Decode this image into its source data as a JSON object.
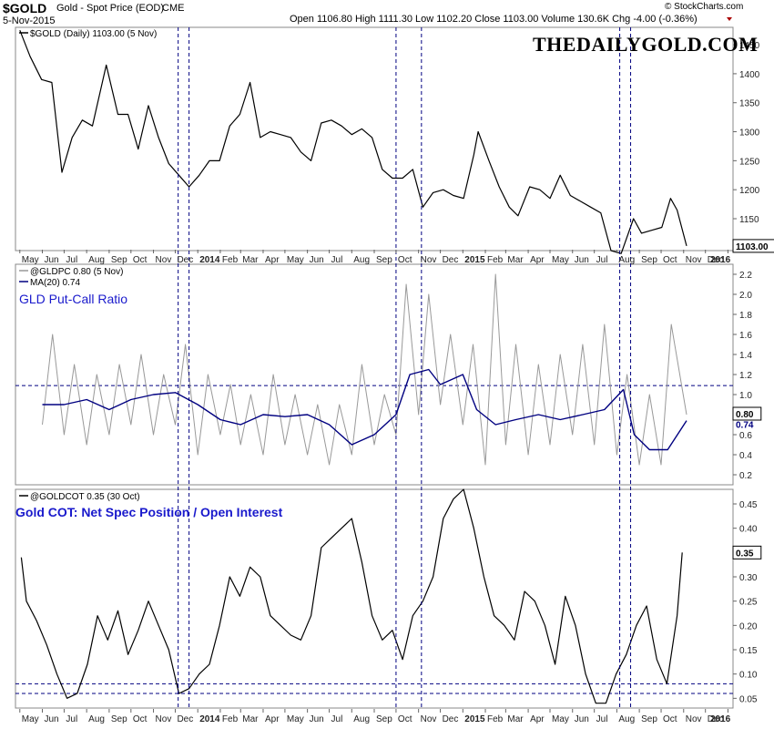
{
  "header": {
    "symbol": "$GOLD",
    "description": "Gold - Spot Price (EOD)",
    "exchange": "CME",
    "date": "5-Nov-2015",
    "ohlc": "Open 1106.80  High 1111.30  Low 1102.20  Close 1103.00  Volume 130.6K  Chg -4.00 (-0.36%)",
    "copyright": "© StockCharts.com",
    "brand": "THEDAILYGOLD.COM"
  },
  "colors": {
    "price_line": "#000000",
    "pcr_raw": "#999999",
    "ma_line": "#000080",
    "annotation": "#1a1acc",
    "guide": "#000080"
  },
  "chart_data": [
    {
      "type": "line",
      "panel": "price",
      "legend": "$GOLD (Daily) 1103.00 (5 Nov)",
      "last_value_label": "1103.00",
      "ylim": [
        1095,
        1480
      ],
      "y_ticks": [
        1150,
        1200,
        1250,
        1300,
        1350,
        1400,
        1450
      ],
      "series": [
        {
          "name": "$GOLD",
          "x": [
            "2013-05-01",
            "2013-05-15",
            "2013-05-31",
            "2013-06-14",
            "2013-06-28",
            "2013-07-12",
            "2013-07-26",
            "2013-08-09",
            "2013-08-28",
            "2013-09-13",
            "2013-09-27",
            "2013-10-11",
            "2013-10-25",
            "2013-11-08",
            "2013-11-22",
            "2013-12-06",
            "2013-12-20",
            "2014-01-03",
            "2014-01-17",
            "2014-01-31",
            "2014-02-14",
            "2014-02-28",
            "2014-03-14",
            "2014-03-28",
            "2014-04-11",
            "2014-04-25",
            "2014-05-09",
            "2014-05-23",
            "2014-06-06",
            "2014-06-20",
            "2014-07-04",
            "2014-07-18",
            "2014-08-01",
            "2014-08-15",
            "2014-08-29",
            "2014-09-12",
            "2014-09-26",
            "2014-10-10",
            "2014-10-24",
            "2014-11-07",
            "2014-11-21",
            "2014-12-05",
            "2014-12-19",
            "2015-01-02",
            "2015-01-16",
            "2015-01-22",
            "2015-02-06",
            "2015-02-20",
            "2015-03-06",
            "2015-03-18",
            "2015-04-03",
            "2015-04-17",
            "2015-05-01",
            "2015-05-15",
            "2015-05-29",
            "2015-06-12",
            "2015-06-26",
            "2015-07-10",
            "2015-07-24",
            "2015-08-07",
            "2015-08-24",
            "2015-09-04",
            "2015-09-18",
            "2015-10-02",
            "2015-10-14",
            "2015-10-23",
            "2015-11-05"
          ],
          "values": [
            1475,
            1430,
            1390,
            1385,
            1230,
            1290,
            1320,
            1310,
            1415,
            1330,
            1330,
            1270,
            1345,
            1290,
            1245,
            1225,
            1205,
            1225,
            1250,
            1250,
            1310,
            1330,
            1385,
            1290,
            1300,
            1295,
            1290,
            1265,
            1250,
            1315,
            1320,
            1310,
            1295,
            1305,
            1290,
            1235,
            1220,
            1220,
            1235,
            1170,
            1195,
            1200,
            1190,
            1185,
            1260,
            1300,
            1250,
            1205,
            1170,
            1155,
            1205,
            1200,
            1185,
            1225,
            1190,
            1180,
            1170,
            1160,
            1095,
            1090,
            1150,
            1125,
            1130,
            1135,
            1185,
            1165,
            1103
          ]
        }
      ]
    },
    {
      "type": "line",
      "panel": "put-call",
      "title": "GLD Put-Call Ratio",
      "legend": [
        "@GLDPC 0.80 (5 Nov)",
        "MA(20) 0.74"
      ],
      "last_value_labels": [
        "0.80",
        "0.74"
      ],
      "ylim": [
        0.1,
        2.3
      ],
      "y_ticks": [
        0.2,
        0.4,
        0.6,
        0.8,
        1.0,
        1.2,
        1.4,
        1.6,
        1.8,
        2.0,
        2.2
      ],
      "reference_line": 1.09,
      "series": [
        {
          "name": "@GLDPC",
          "x": [
            "2013-06-01",
            "2013-06-15",
            "2013-07-01",
            "2013-07-15",
            "2013-08-01",
            "2013-08-15",
            "2013-09-01",
            "2013-09-15",
            "2013-10-01",
            "2013-10-15",
            "2013-11-01",
            "2013-11-15",
            "2013-12-01",
            "2013-12-15",
            "2014-01-01",
            "2014-01-15",
            "2014-02-01",
            "2014-02-15",
            "2014-03-01",
            "2014-03-15",
            "2014-04-01",
            "2014-04-15",
            "2014-05-01",
            "2014-05-15",
            "2014-06-01",
            "2014-06-15",
            "2014-07-01",
            "2014-07-15",
            "2014-08-01",
            "2014-08-15",
            "2014-09-01",
            "2014-09-15",
            "2014-10-01",
            "2014-10-15",
            "2014-11-01",
            "2014-11-15",
            "2014-12-01",
            "2014-12-15",
            "2015-01-01",
            "2015-01-15",
            "2015-02-01",
            "2015-02-15",
            "2015-03-01",
            "2015-03-15",
            "2015-04-01",
            "2015-04-15",
            "2015-05-01",
            "2015-05-15",
            "2015-06-01",
            "2015-06-15",
            "2015-07-01",
            "2015-07-15",
            "2015-08-01",
            "2015-08-15",
            "2015-09-01",
            "2015-09-15",
            "2015-10-01",
            "2015-10-15",
            "2015-11-05"
          ],
          "values": [
            0.7,
            1.6,
            0.6,
            1.3,
            0.5,
            1.2,
            0.6,
            1.3,
            0.7,
            1.4,
            0.6,
            1.2,
            0.7,
            1.5,
            0.4,
            1.2,
            0.6,
            1.1,
            0.5,
            1.0,
            0.4,
            1.2,
            0.5,
            1.0,
            0.4,
            0.9,
            0.3,
            0.9,
            0.4,
            1.3,
            0.5,
            1.0,
            0.6,
            2.1,
            0.8,
            2.0,
            0.9,
            1.6,
            0.7,
            1.5,
            0.3,
            2.2,
            0.5,
            1.5,
            0.4,
            1.3,
            0.5,
            1.4,
            0.6,
            1.5,
            0.5,
            1.7,
            0.4,
            1.2,
            0.3,
            1.0,
            0.3,
            1.7,
            0.8
          ]
        },
        {
          "name": "MA(20)",
          "x": [
            "2013-06-01",
            "2013-07-01",
            "2013-08-01",
            "2013-09-01",
            "2013-10-01",
            "2013-11-01",
            "2013-12-01",
            "2014-01-01",
            "2014-02-01",
            "2014-03-01",
            "2014-04-01",
            "2014-05-01",
            "2014-06-01",
            "2014-07-01",
            "2014-08-01",
            "2014-09-01",
            "2014-10-01",
            "2014-10-20",
            "2014-11-15",
            "2014-12-01",
            "2015-01-01",
            "2015-01-20",
            "2015-02-15",
            "2015-03-15",
            "2015-04-15",
            "2015-05-15",
            "2015-06-15",
            "2015-07-15",
            "2015-08-10",
            "2015-08-25",
            "2015-09-15",
            "2015-10-10",
            "2015-11-05"
          ],
          "values": [
            0.9,
            0.9,
            0.95,
            0.85,
            0.95,
            1.0,
            1.02,
            0.9,
            0.75,
            0.7,
            0.8,
            0.78,
            0.8,
            0.7,
            0.5,
            0.6,
            0.8,
            1.2,
            1.25,
            1.1,
            1.2,
            0.85,
            0.7,
            0.75,
            0.8,
            0.75,
            0.8,
            0.85,
            1.05,
            0.6,
            0.45,
            0.45,
            0.74
          ]
        }
      ]
    },
    {
      "type": "line",
      "panel": "cot",
      "title": "Gold COT: Net Spec Position / Open Interest",
      "legend": "@GOLDCOT 0.35 (30 Oct)",
      "last_value_label": "0.35",
      "ylim": [
        0.03,
        0.48
      ],
      "y_ticks": [
        0.05,
        0.1,
        0.15,
        0.2,
        0.25,
        0.3,
        0.35,
        0.4,
        0.45
      ],
      "reference_lines": [
        0.06,
        0.08
      ],
      "series": [
        {
          "name": "@GOLDCOT",
          "x": [
            "2013-05-03",
            "2013-05-10",
            "2013-05-24",
            "2013-06-07",
            "2013-06-21",
            "2013-07-05",
            "2013-07-19",
            "2013-08-02",
            "2013-08-16",
            "2013-08-30",
            "2013-09-13",
            "2013-09-27",
            "2013-10-11",
            "2013-10-25",
            "2013-11-08",
            "2013-11-22",
            "2013-12-06",
            "2013-12-20",
            "2014-01-03",
            "2014-01-17",
            "2014-01-31",
            "2014-02-14",
            "2014-02-28",
            "2014-03-14",
            "2014-03-28",
            "2014-04-11",
            "2014-04-25",
            "2014-05-09",
            "2014-05-23",
            "2014-06-06",
            "2014-06-20",
            "2014-07-04",
            "2014-07-18",
            "2014-08-01",
            "2014-08-15",
            "2014-08-29",
            "2014-09-12",
            "2014-09-26",
            "2014-10-10",
            "2014-10-24",
            "2014-11-07",
            "2014-11-21",
            "2014-12-05",
            "2014-12-19",
            "2015-01-02",
            "2015-01-16",
            "2015-01-30",
            "2015-02-13",
            "2015-02-27",
            "2015-03-13",
            "2015-03-27",
            "2015-04-10",
            "2015-04-24",
            "2015-05-08",
            "2015-05-22",
            "2015-06-05",
            "2015-06-19",
            "2015-07-03",
            "2015-07-17",
            "2015-07-31",
            "2015-08-14",
            "2015-08-28",
            "2015-09-11",
            "2015-09-25",
            "2015-10-09",
            "2015-10-23",
            "2015-10-30"
          ],
          "values": [
            0.34,
            0.25,
            0.21,
            0.16,
            0.1,
            0.05,
            0.06,
            0.12,
            0.22,
            0.17,
            0.23,
            0.14,
            0.19,
            0.25,
            0.2,
            0.15,
            0.06,
            0.07,
            0.1,
            0.12,
            0.2,
            0.3,
            0.26,
            0.32,
            0.3,
            0.22,
            0.2,
            0.18,
            0.17,
            0.22,
            0.36,
            0.38,
            0.4,
            0.42,
            0.33,
            0.22,
            0.17,
            0.19,
            0.13,
            0.22,
            0.25,
            0.3,
            0.42,
            0.46,
            0.48,
            0.4,
            0.3,
            0.22,
            0.2,
            0.17,
            0.27,
            0.25,
            0.2,
            0.12,
            0.26,
            0.2,
            0.1,
            0.04,
            0.04,
            0.1,
            0.14,
            0.2,
            0.24,
            0.13,
            0.08,
            0.22,
            0.35
          ]
        }
      ]
    }
  ],
  "x_axis": {
    "labels": [
      "May",
      "Jun",
      "Jul",
      "Aug",
      "Sep",
      "Oct",
      "Nov",
      "Dec",
      "2014",
      "Feb",
      "Mar",
      "Apr",
      "May",
      "Jun",
      "Jul",
      "Aug",
      "Sep",
      "Oct",
      "Nov",
      "Dec",
      "2015",
      "Feb",
      "Mar",
      "Apr",
      "May",
      "Jun",
      "Jul",
      "Aug",
      "Sep",
      "Oct",
      "Nov",
      "Dec",
      "2016"
    ],
    "dates": [
      "2013-05-01",
      "2013-06-01",
      "2013-07-01",
      "2013-08-01",
      "2013-09-01",
      "2013-10-01",
      "2013-11-01",
      "2013-12-01",
      "2014-01-01",
      "2014-02-01",
      "2014-03-01",
      "2014-04-01",
      "2014-05-01",
      "2014-06-01",
      "2014-07-01",
      "2014-08-01",
      "2014-09-01",
      "2014-10-01",
      "2014-11-01",
      "2014-12-01",
      "2015-01-01",
      "2015-02-01",
      "2015-03-01",
      "2015-04-01",
      "2015-05-01",
      "2015-06-01",
      "2015-07-01",
      "2015-08-01",
      "2015-09-01",
      "2015-10-01",
      "2015-11-01",
      "2015-12-01",
      "2016-01-01"
    ],
    "bold": [
      "2014",
      "2015",
      "2016"
    ]
  },
  "guide_dates": [
    "2013-12-05",
    "2013-12-20",
    "2014-10-01",
    "2014-11-05",
    "2015-08-05",
    "2015-08-20"
  ]
}
